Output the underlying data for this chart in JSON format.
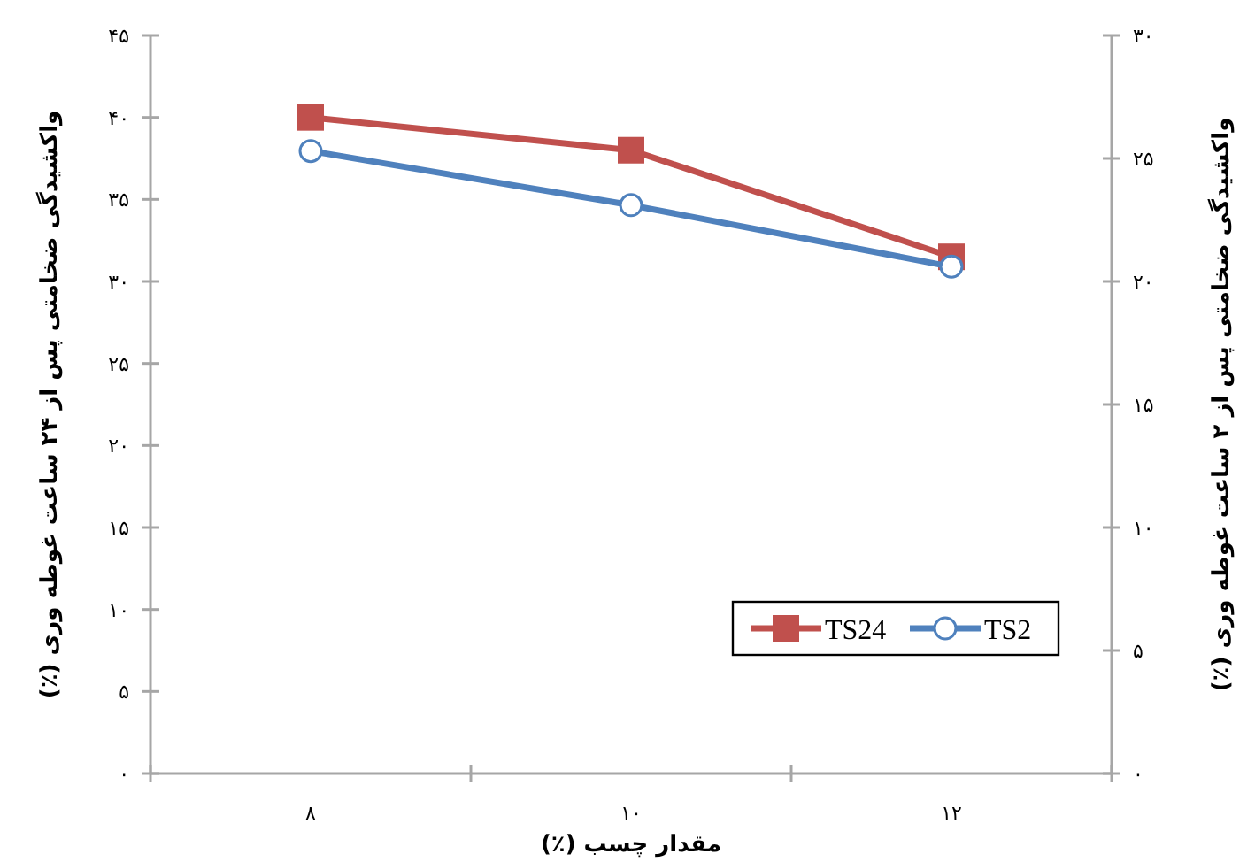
{
  "chart_data": {
    "type": "line",
    "xlabel": "مقدار چسب (٪)",
    "ylabel": "واکشیدگی ضخامتی پس از ۲۴ ساعت غوطه وری (٪)",
    "y2label": "واکشیدگی ضخامتی پس از ۲ ساعت غوطه وری (٪)",
    "categories": [
      "۸",
      "۱۰",
      "۱۲"
    ],
    "series": [
      {
        "name": "TS24",
        "color": "#c0504d",
        "marker": "square",
        "values": [
          40,
          38,
          31.5
        ]
      },
      {
        "name": "TS2",
        "color": "#4f81bd",
        "marker": "circle",
        "axis": "y2",
        "values": [
          25.3,
          23.1,
          20.6
        ]
      }
    ],
    "ylim": [
      0,
      45
    ],
    "yticks": [
      {
        "value": 0,
        "label": "۰"
      },
      {
        "value": 5,
        "label": "۵"
      },
      {
        "value": 10,
        "label": "۱۰"
      },
      {
        "value": 15,
        "label": "۱۵"
      },
      {
        "value": 20,
        "label": "۲۰"
      },
      {
        "value": 25,
        "label": "۲۵"
      },
      {
        "value": 30,
        "label": "۳۰"
      },
      {
        "value": 35,
        "label": "۳۵"
      },
      {
        "value": 40,
        "label": "۴۰"
      },
      {
        "value": 45,
        "label": "۴۵"
      }
    ],
    "y2lim": [
      0,
      30
    ],
    "y2ticks": [
      {
        "value": 0,
        "label": "۰"
      },
      {
        "value": 5,
        "label": "۵"
      },
      {
        "value": 10,
        "label": "۱۰"
      },
      {
        "value": 15,
        "label": "۱۵"
      },
      {
        "value": 20,
        "label": "۲۰"
      },
      {
        "value": 25,
        "label": "۲۵"
      },
      {
        "value": 30,
        "label": "۳۰"
      }
    ],
    "legend": "bottom right",
    "grid": false
  }
}
